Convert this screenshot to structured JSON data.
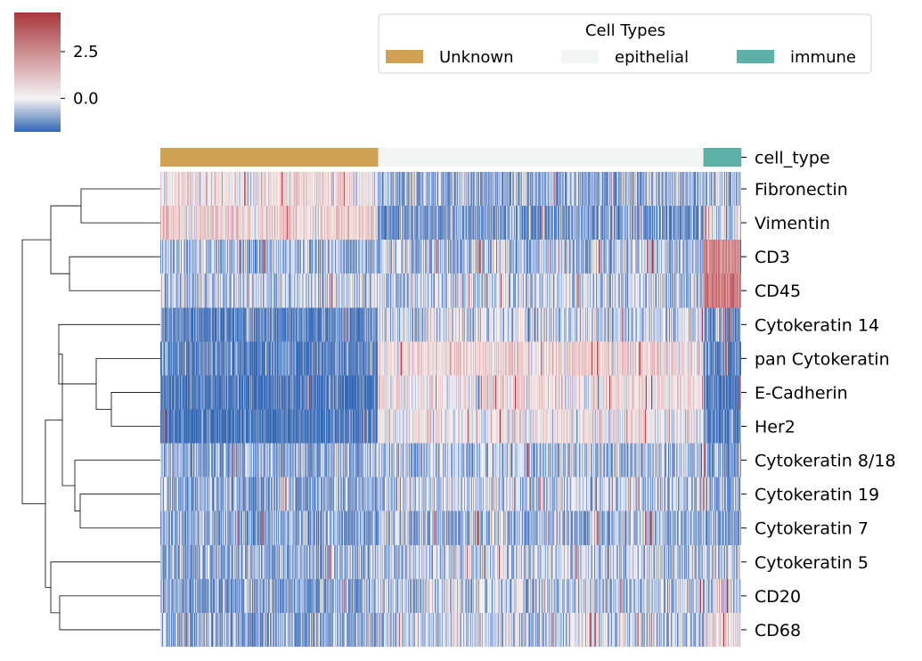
{
  "chart_data": {
    "type": "heatmap",
    "title": "",
    "xlabel": "",
    "ylabel": "",
    "colorbar": {
      "ticks": [
        2.5,
        0.0
      ],
      "tick_labels": [
        "2.5",
        "0.0"
      ],
      "range": [
        -1.8,
        4.6
      ],
      "colormap": "vlag (blue-white-red)",
      "colors": {
        "low": "#3267b3",
        "mid": "#f5f3f3",
        "high": "#a9373b"
      }
    },
    "legend": {
      "title": "Cell Types",
      "placement": "top-right",
      "entries": [
        {
          "label": "Unknown",
          "color": "#cfa153"
        },
        {
          "label": "epithelial",
          "color": "#f3f5f4"
        },
        {
          "label": "immune",
          "color": "#5bb1a5"
        }
      ]
    },
    "annotation_row": {
      "label": "cell_type",
      "segments": [
        {
          "type": "Unknown",
          "fraction": 0.375
        },
        {
          "type": "epithelial",
          "fraction": 0.56
        },
        {
          "type": "immune",
          "fraction": 0.065
        }
      ]
    },
    "rows": [
      {
        "marker": "Fibronectin",
        "mean_by_type": [
          0.3,
          -0.6,
          -0.2
        ]
      },
      {
        "marker": "Vimentin",
        "mean_by_type": [
          0.7,
          -0.9,
          -0.1
        ]
      },
      {
        "marker": "CD3",
        "mean_by_type": [
          -0.5,
          -0.4,
          2.0
        ]
      },
      {
        "marker": "CD45",
        "mean_by_type": [
          -0.3,
          -0.3,
          2.2
        ]
      },
      {
        "marker": "Cytokeratin 14",
        "mean_by_type": [
          -1.1,
          -0.2,
          -0.8
        ]
      },
      {
        "marker": "pan Cytokeratin",
        "mean_by_type": [
          -1.1,
          0.5,
          -1.1
        ]
      },
      {
        "marker": "E-Cadherin",
        "mean_by_type": [
          -1.4,
          0.4,
          -1.3
        ]
      },
      {
        "marker": "Her2",
        "mean_by_type": [
          -1.4,
          0.2,
          -1.3
        ]
      },
      {
        "marker": "Cytokeratin 8/18",
        "mean_by_type": [
          -0.6,
          -0.4,
          -0.6
        ]
      },
      {
        "marker": "Cytokeratin 19",
        "mean_by_type": [
          -0.6,
          -0.3,
          -0.6
        ]
      },
      {
        "marker": "Cytokeratin 7",
        "mean_by_type": [
          -0.7,
          -0.5,
          -0.7
        ]
      },
      {
        "marker": "Cytokeratin 5",
        "mean_by_type": [
          -0.6,
          -0.3,
          -0.4
        ]
      },
      {
        "marker": "CD20",
        "mean_by_type": [
          -0.7,
          -0.3,
          -0.1
        ]
      },
      {
        "marker": "CD68",
        "mean_by_type": [
          -0.6,
          -0.3,
          0.4
        ]
      }
    ]
  }
}
